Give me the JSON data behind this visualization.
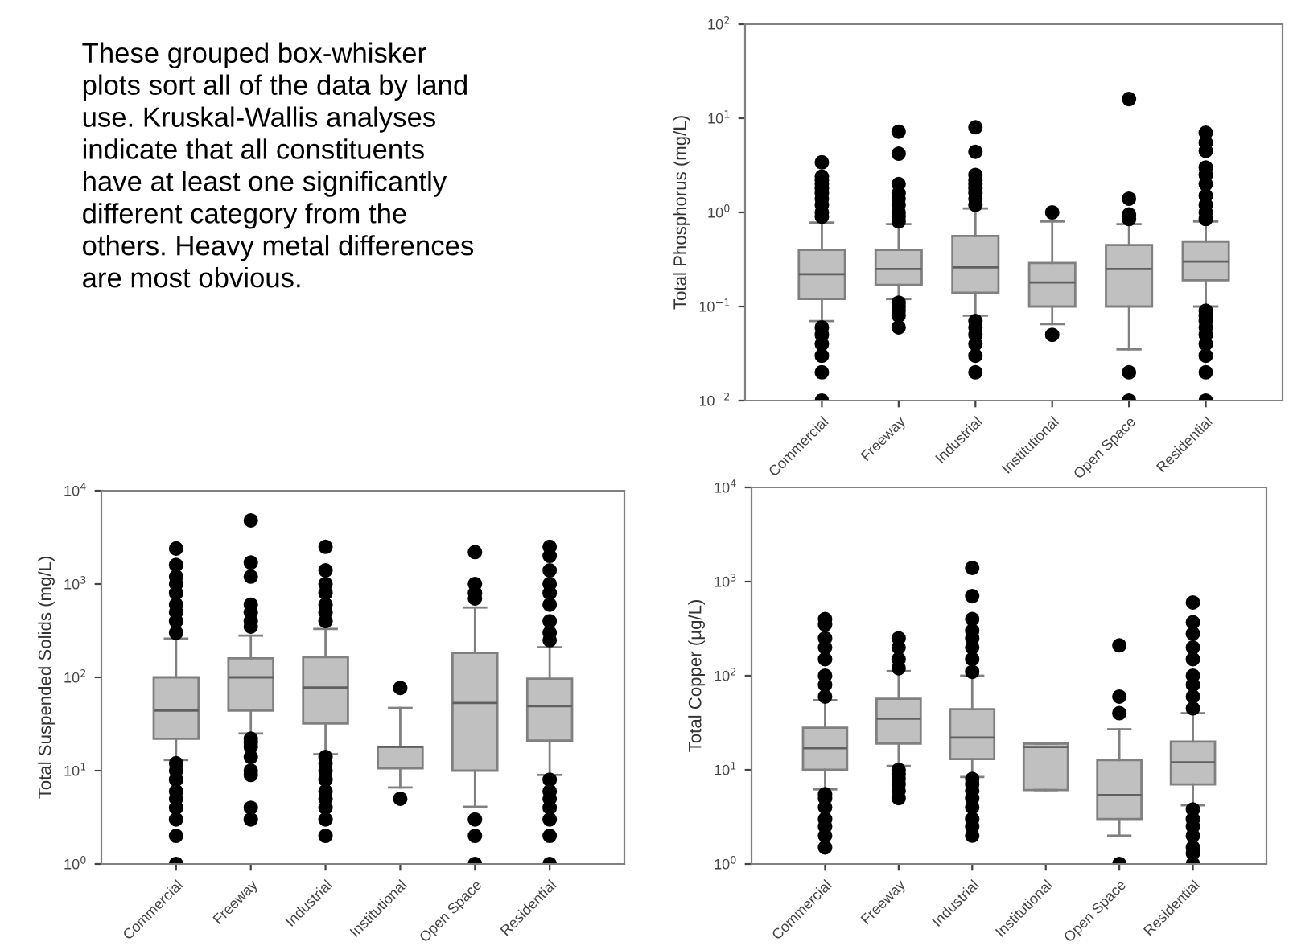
{
  "chart_data": [
    {
      "type": "other",
      "annotations": [
        "These grouped box-whisker\nplots sort all of the data by land\nuse. Kruskal-Wallis analyses\nindicate that all constituents\nhave at least one significantly\ndifferent category from the\nothers. Heavy metal differences\nare most obvious."
      ]
    },
    {
      "type": "box",
      "ylabel": "Total Phosphorus (mg/L)",
      "log": true,
      "ylim": [
        0.01,
        100
      ],
      "yticks": [
        {
          "value": 0.01,
          "label": "10$^{−2}$"
        },
        {
          "value": 0.1,
          "label": "10$^{−1}$"
        },
        {
          "value": 1,
          "label": "10$^{0}$"
        },
        {
          "value": 10,
          "label": "10$^{1}$"
        },
        {
          "value": 100,
          "label": "10$^{2}$"
        }
      ],
      "color": "#c0c0c0",
      "categories": [
        "Commercial",
        "Freeway",
        "Industrial",
        "Institutional",
        "Open Space",
        "Residential"
      ],
      "boxes": [
        {
          "low": 0.07,
          "q1": 0.12,
          "median": 0.22,
          "q3": 0.4,
          "high": 0.78,
          "outliers": [
            0.9,
            1.0,
            1.2,
            1.4,
            1.6,
            1.8,
            2.0,
            2.2,
            2.4,
            3.4,
            0.06,
            0.05,
            0.04,
            0.03,
            0.02,
            0.01
          ]
        },
        {
          "low": 0.12,
          "q1": 0.17,
          "median": 0.25,
          "q3": 0.4,
          "high": 0.75,
          "outliers": [
            0.8,
            0.9,
            1.0,
            1.2,
            1.4,
            1.6,
            2.0,
            4.2,
            7.2,
            0.11,
            0.1,
            0.09,
            0.08,
            0.06
          ]
        },
        {
          "low": 0.08,
          "q1": 0.14,
          "median": 0.26,
          "q3": 0.56,
          "high": 1.1,
          "outliers": [
            1.2,
            1.4,
            1.6,
            1.8,
            2.0,
            2.2,
            2.5,
            4.4,
            8.0,
            0.07,
            0.06,
            0.05,
            0.04,
            0.03,
            0.02
          ]
        },
        {
          "low": 0.065,
          "q1": 0.1,
          "median": 0.18,
          "q3": 0.29,
          "high": 0.8,
          "outliers": [
            1.0,
            0.05
          ]
        },
        {
          "low": 0.035,
          "q1": 0.1,
          "median": 0.25,
          "q3": 0.45,
          "high": 0.75,
          "outliers": [
            0.85,
            0.95,
            1.4,
            16,
            0.02,
            0.01
          ]
        },
        {
          "low": 0.1,
          "q1": 0.19,
          "median": 0.3,
          "q3": 0.49,
          "high": 0.8,
          "outliers": [
            0.85,
            1.0,
            1.2,
            1.5,
            2.0,
            2.5,
            3.0,
            4.5,
            5.5,
            7.0,
            0.09,
            0.08,
            0.07,
            0.06,
            0.05,
            0.04,
            0.03,
            0.02,
            0.01
          ]
        }
      ]
    },
    {
      "type": "box",
      "ylabel": "Total Suspended Solids (mg/L)",
      "log": true,
      "ylim": [
        1,
        10000
      ],
      "yticks": [
        {
          "value": 1,
          "label": "10$^{0}$"
        },
        {
          "value": 10,
          "label": "10$^{1}$"
        },
        {
          "value": 100,
          "label": "10$^{2}$"
        },
        {
          "value": 1000,
          "label": "10$^{3}$"
        },
        {
          "value": 10000,
          "label": "10$^{4}$"
        }
      ],
      "color": "#c0c0c0",
      "categories": [
        "Commercial",
        "Freeway",
        "Industrial",
        "Institutional",
        "Open Space",
        "Residential"
      ],
      "boxes": [
        {
          "low": 13,
          "q1": 22,
          "median": 44,
          "q3": 100,
          "high": 260,
          "outliers": [
            300,
            400,
            500,
            600,
            800,
            1000,
            1200,
            1600,
            2400,
            12,
            10,
            8,
            6,
            5,
            4,
            3,
            2,
            1
          ]
        },
        {
          "low": 25,
          "q1": 44,
          "median": 100,
          "q3": 160,
          "high": 280,
          "outliers": [
            350,
            400,
            500,
            600,
            1200,
            1700,
            4800,
            22,
            20,
            18,
            14,
            10,
            9,
            4,
            3
          ]
        },
        {
          "low": 15,
          "q1": 32,
          "median": 78,
          "q3": 165,
          "high": 330,
          "outliers": [
            400,
            500,
            600,
            800,
            1000,
            1400,
            2500,
            14,
            12,
            10,
            8,
            6,
            5,
            4,
            3,
            2
          ]
        },
        {
          "low": 6.6,
          "q1": 10.6,
          "median": 18,
          "q3": 18,
          "high": 47,
          "outliers": [
            77,
            5
          ]
        },
        {
          "low": 4.1,
          "q1": 10,
          "median": 53,
          "q3": 183,
          "high": 560,
          "outliers": [
            700,
            800,
            1000,
            2200,
            3,
            2,
            1
          ]
        },
        {
          "low": 9,
          "q1": 21,
          "median": 49,
          "q3": 97,
          "high": 210,
          "outliers": [
            250,
            300,
            400,
            600,
            800,
            1000,
            1400,
            2000,
            2500,
            8,
            6,
            5,
            4,
            3,
            2,
            1
          ]
        }
      ]
    },
    {
      "type": "box",
      "ylabel": "Total Copper (µg/L)",
      "log": true,
      "ylim": [
        1,
        10000
      ],
      "yticks": [
        {
          "value": 1,
          "label": "10$^{0}$"
        },
        {
          "value": 10,
          "label": "10$^{1}$"
        },
        {
          "value": 100,
          "label": "10$^{2}$"
        },
        {
          "value": 1000,
          "label": "10$^{3}$"
        },
        {
          "value": 10000,
          "label": "10$^{4}$"
        }
      ],
      "color": "#c0c0c0",
      "categories": [
        "Commercial",
        "Freeway",
        "Industrial",
        "Institutional",
        "Open Space",
        "Residential"
      ],
      "boxes": [
        {
          "low": 6.2,
          "q1": 10,
          "median": 17,
          "q3": 28,
          "high": 55,
          "outliers": [
            60,
            80,
            100,
            150,
            200,
            250,
            350,
            400,
            5.5,
            5,
            4,
            3,
            2.5,
            2,
            1.5
          ]
        },
        {
          "low": 11,
          "q1": 19,
          "median": 35,
          "q3": 57,
          "high": 112,
          "outliers": [
            120,
            150,
            200,
            250,
            10,
            9,
            8,
            7,
            6,
            5
          ]
        },
        {
          "low": 8.4,
          "q1": 13,
          "median": 22,
          "q3": 44,
          "high": 100,
          "outliers": [
            110,
            150,
            200,
            250,
            300,
            400,
            700,
            1400,
            8,
            7,
            6,
            5,
            4,
            3,
            2.5,
            2
          ]
        },
        {
          "low": 6.1,
          "q1": 6.1,
          "median": 17.5,
          "q3": 19,
          "high": 19
        },
        {
          "low": 2,
          "q1": 3,
          "median": 5.4,
          "q3": 12.7,
          "high": 27,
          "outliers": [
            40,
            60,
            210,
            1
          ]
        },
        {
          "low": 4.2,
          "q1": 7,
          "median": 12,
          "q3": 20,
          "high": 40,
          "outliers": [
            45,
            60,
            80,
            100,
            150,
            200,
            280,
            370,
            600,
            3.8,
            3,
            2.5,
            2,
            1.5,
            1.3,
            1
          ]
        }
      ]
    }
  ]
}
